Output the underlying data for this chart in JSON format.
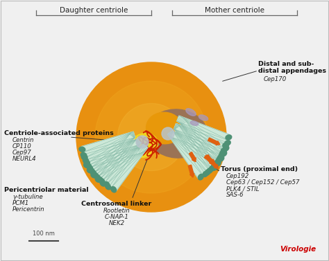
{
  "bg_color": "#f0f0f0",
  "daughter_label": "Daughter centriole",
  "mother_label": "Mother centriole",
  "centriole_associated_bold": "Centriole-associated proteins",
  "centriole_associated_list": [
    "Centrin",
    "CP110",
    "Cep97",
    "NEURL4"
  ],
  "pericentriolar_bold": "Pericentriolar material",
  "pericentriolar_list": [
    "γ-tubuline",
    "PCM1",
    "Pericentrin"
  ],
  "centrosomal_bold": "Centrosomal linker",
  "centrosomal_list": [
    "Rootletin",
    "C-NAP-1",
    "NEK2"
  ],
  "distal_bold": "Distal and sub-\ndistal appendages",
  "distal_list": [
    "Cep170"
  ],
  "torus_bold": "Torus (proximal end)",
  "torus_list": [
    "Cep192",
    "Cep63 / Cep152 / Cep57",
    "PLK4 / STIL",
    "SAS-6"
  ],
  "scale_label": "100 nm",
  "virologie_text": "Virologie",
  "virologie_color": "#cc0000",
  "outer_circle_color": "#e8980a",
  "inner_torus_color": "#9b7355",
  "tube_body_color": "#cce8d8",
  "tube_end_color": "#4e9175",
  "tube_outline_color": "#8abcaa",
  "cap_gray": "#b8c4cc",
  "yellow_highlight": "#f0d820",
  "orange_appendage": "#e06010",
  "purple_appendage": "#a898bc",
  "red_linker": "#cc2200",
  "bracket_color": "#666666",
  "line_color": "#333333",
  "text_color": "#222222",
  "bold_text_color": "#111111"
}
